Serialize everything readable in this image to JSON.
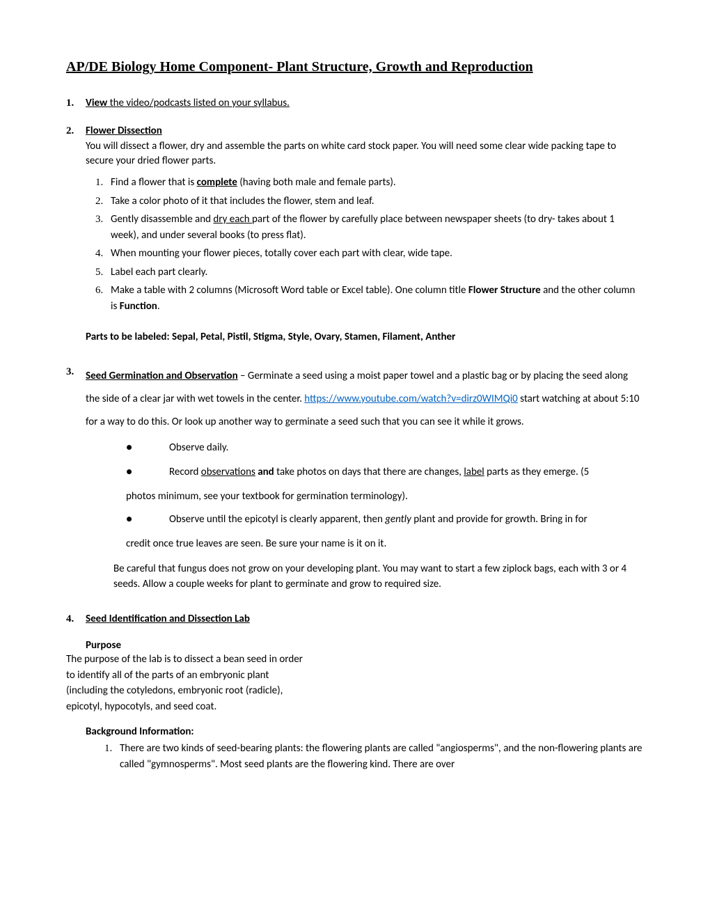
{
  "title": "AP/DE Biology  Home Component- Plant Structure, Growth and Reproduction",
  "item1": {
    "num": "1.",
    "heading": "View",
    "text": " the video/podcasts listed on your syllabus."
  },
  "item2": {
    "num": "2.",
    "heading": "Flower Dissection",
    "desc": "You will dissect a flower, dry and assemble the parts on white card stock paper.  You will need some clear wide packing tape to secure your dried flower parts.",
    "steps": {
      "s1n": "1.",
      "s1a": "Find a flower that is ",
      "s1b": "complete",
      "s1c": " (having both male and female parts).",
      "s2n": "2.",
      "s2": "Take a color photo of it that includes the flower, stem and leaf.",
      "s3n": "3.",
      "s3a": "Gently disassemble and ",
      "s3b": "dry each ",
      "s3c": "part of the flower by carefully place between newspaper sheets (to dry- takes about 1 week), and under several books (to press flat).",
      "s4n": "4.",
      "s4": "When mounting your flower pieces, totally cover each part with clear, wide tape.",
      "s5n": "5.",
      "s5": "Label each part clearly.",
      "s6n": "6.",
      "s6a": "Make a table with 2 columns (Microsoft Word table or Excel table). One column title ",
      "s6b": "Flower Structure",
      "s6c": " and the other column is ",
      "s6d": "Function",
      "s6e": "."
    }
  },
  "parts": "Parts to be labeled:  Sepal, Petal, Pistil, Stigma, Style, Ovary, Stamen, Filament, Anther",
  "item3": {
    "num": "3.",
    "heading": "Seed Germination and Observation",
    "t1": " – Germinate a seed using a moist paper towel and a plastic bag or by placing the seed along the side of a clear jar with wet towels in the center.  ",
    "link": "https://www.youtube.com/watch?v=dirz0WIMQi0",
    "t2": " start watching at about 5:10 for a way to do this. Or look up another way to germinate a seed such that you can see it while it grows.",
    "b1": "Observe daily.",
    "b2a": "Record ",
    "b2b": "observations",
    "b2c": " and",
    "b2d": " take photos on days that there are changes, ",
    "b2e": "label",
    "b2f": " parts as they emerge. (5 ",
    "b2cont": "photos minimum, see your textbook for germination terminology).",
    "b3a": "Observe until the epicotyl is clearly apparent, then ",
    "b3b": "gently",
    "b3c": " plant and provide for growth. Bring in for ",
    "b3cont": "credit once true leaves are seen. Be sure your name is it on it.",
    "caution": "Be careful that fungus does not grow on your developing plant.  You may want to start a few ziplock bags, each with 3 or 4 seeds.  Allow a couple weeks for plant to germinate and grow to required size."
  },
  "item4": {
    "num": "4.",
    "heading": "Seed Identification and Dissection Lab",
    "purposeH": "Purpose",
    "purpose": "The purpose of the lab is to dissect a bean seed in order to identify all of the parts of an embryonic plant (including the cotyledons, embryonic root (radicle), epicotyl, hypocotyls,  and seed coat.",
    "bgH": "Background Information:",
    "bg1n": "1.",
    "bg1": "There are two kinds of seed-bearing plants:  the flowering plants are called \"angiosperms\", and the non-flowering plants are called \"gymnosperms\".  Most seed plants are the flowering kind.  There are over"
  }
}
